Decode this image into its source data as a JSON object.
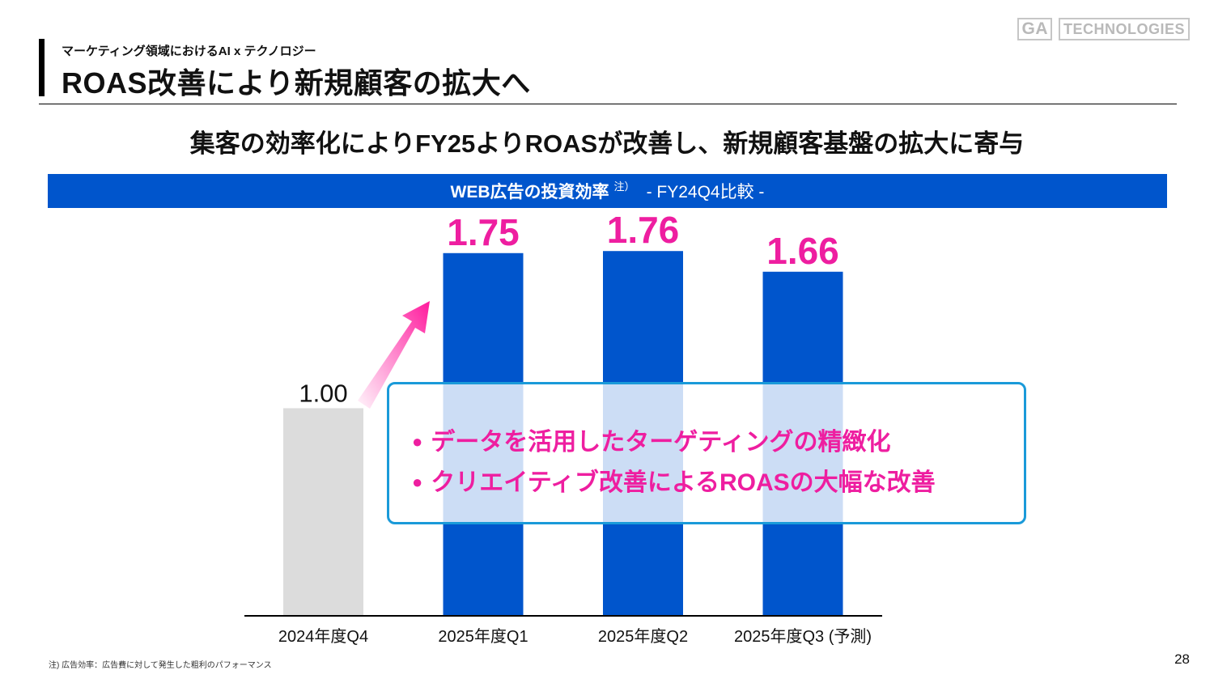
{
  "header": {
    "supertitle": "マーケティング領域におけるAI x テクノロジー",
    "title": "ROAS改善により新規顧客の拡大へ",
    "logo_mark": "GA",
    "logo_name": "TECHNOLOGIES"
  },
  "subheading": "集客の効率化によりFY25よりROASが改善し、新規顧客基盤の拡大に寄与",
  "banner": {
    "main": "WEB広告の投資効率",
    "note_marker": "注）",
    "comparison": "- FY24Q4比較 -"
  },
  "chart_data": {
    "type": "bar",
    "categories": [
      "2024年度Q4",
      "2025年度Q1",
      "2025年度Q2",
      "2025年度Q3 (予測)"
    ],
    "values": [
      1.0,
      1.75,
      1.76,
      1.66
    ],
    "value_labels": [
      "1.00",
      "1.75",
      "1.76",
      "1.66"
    ],
    "colors": [
      "#DCDCDC",
      "#0055CC",
      "#0055CC",
      "#0055CC"
    ],
    "label_colors": [
      "#111111",
      "#EE1EA0",
      "#EE1EA0",
      "#EE1EA0"
    ],
    "ylim": [
      0,
      1.8
    ],
    "grid": false,
    "title": "",
    "xlabel": "",
    "ylabel": ""
  },
  "callout": {
    "items": [
      "データを活用したターゲティングの精緻化",
      "クリエイティブ改善によるROASの大幅な改善"
    ]
  },
  "footnote": "注) 広告効率：広告費に対して発生した粗利のパフォーマンス",
  "page_number": "28"
}
